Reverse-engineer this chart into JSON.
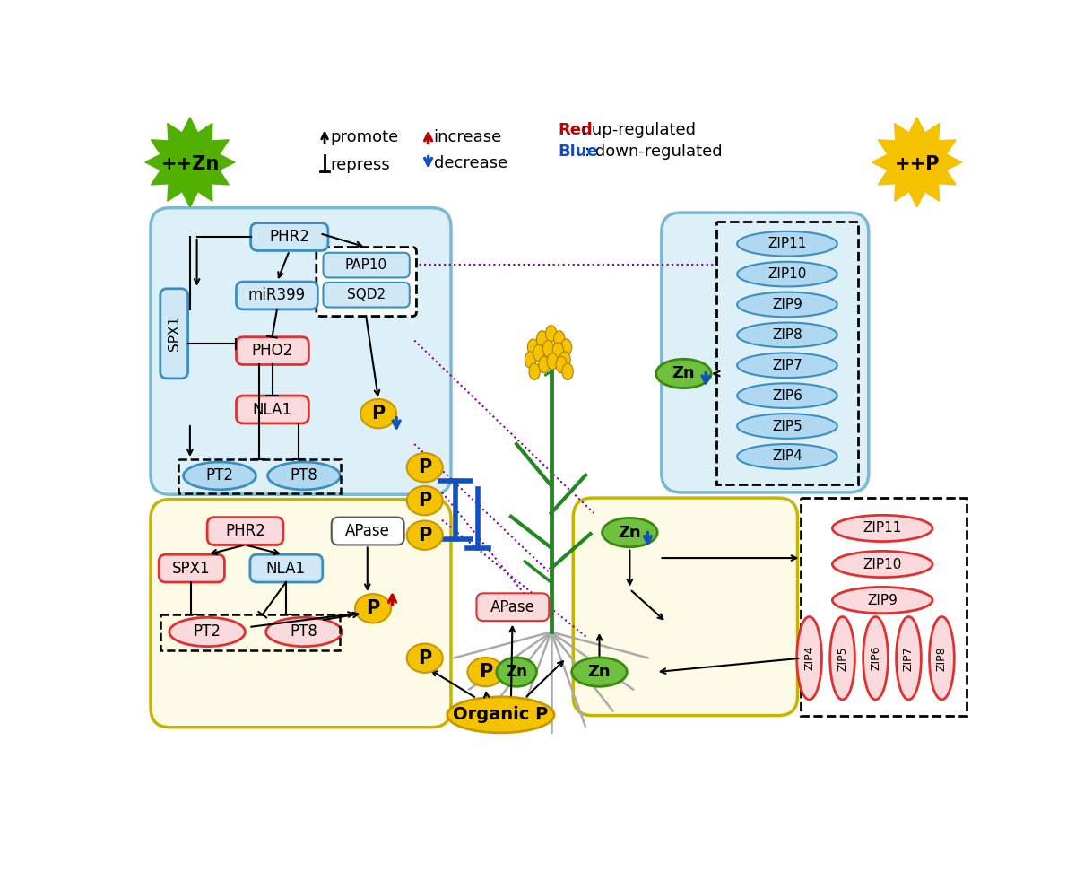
{
  "bg_color": "#ffffff",
  "legend": {
    "promote_text": "promote",
    "repress_text": "repress",
    "increase_text": "increase",
    "decrease_text": "decrease"
  },
  "colors": {
    "green_burst": "#52b000",
    "gold_burst": "#f5c200",
    "shoot_bg": "#ddf0f8",
    "shoot_border": "#7ab8d4",
    "root_p_bg": "#fdfbe6",
    "root_p_border": "#c8b400",
    "root_zn_bg": "#fdfbe6",
    "root_zn_border": "#c8b400",
    "blue_rect_fill": "#d0e8f5",
    "blue_rect_border": "#3a8fc0",
    "red_rect_fill": "#fadadd",
    "red_rect_border": "#e03030",
    "gray_rect_fill": "#e0e0e0",
    "gray_rect_border": "#888888",
    "blue_ellipse_fill": "#b0d8f0",
    "blue_ellipse_border": "#3a8fc0",
    "red_ellipse_fill": "#fadadd",
    "red_ellipse_border": "#e03030",
    "gold_fill": "#f5c200",
    "gold_border": "#c89800",
    "green_fill": "#70c040",
    "green_border": "#3a8a10",
    "purple": "#8000a0",
    "blue_arrow": "#1050c0",
    "red_arrow": "#c00000"
  }
}
